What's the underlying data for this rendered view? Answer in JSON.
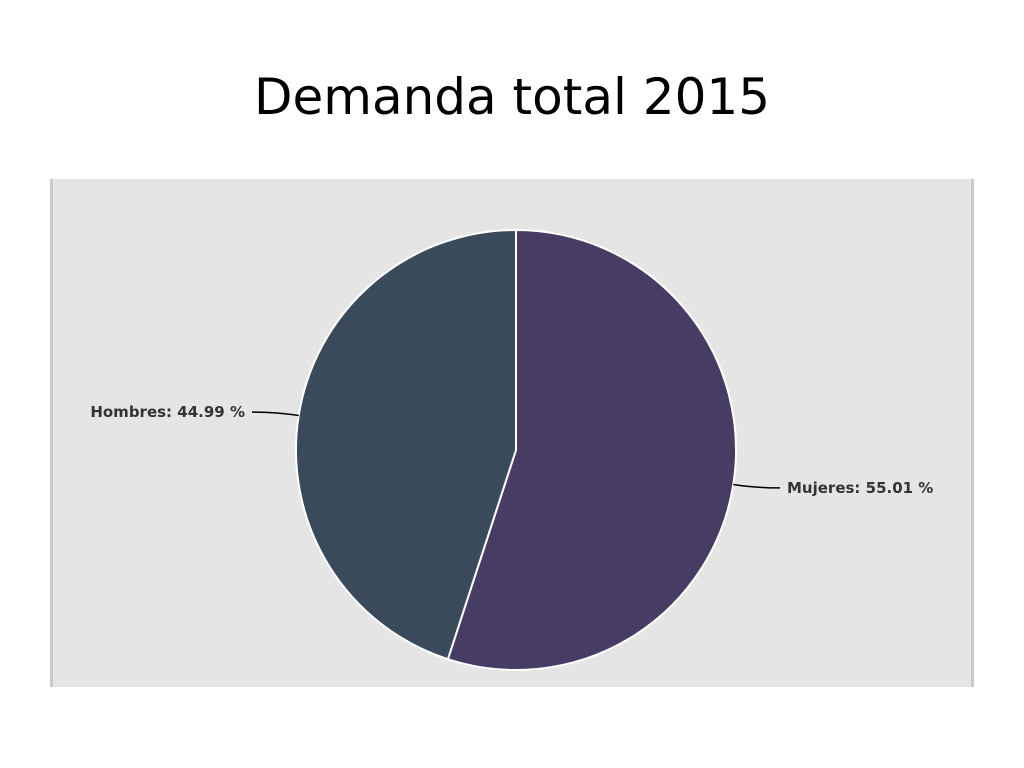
{
  "slide": {
    "title": "Demanda total 2015"
  },
  "chart_data": {
    "type": "pie",
    "title": "",
    "slices": [
      {
        "label": "Mujeres",
        "value": 55.01,
        "display": "Mujeres: 55.01 %",
        "color": "#463c64"
      },
      {
        "label": "Hombres",
        "value": 44.99,
        "display": "Hombres: 44.99 %",
        "color": "#394a5b"
      }
    ],
    "start_angle_deg": 0,
    "direction": "clockwise",
    "background": "#e5e5e5",
    "slice_border_color": "#ffffff"
  }
}
